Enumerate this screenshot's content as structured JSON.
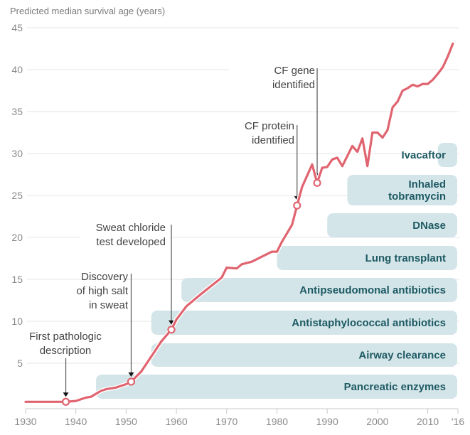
{
  "chart_data": {
    "type": "line",
    "title": "",
    "ylabel": "Predicted median survival age (years)",
    "xlabel": "",
    "xlim": [
      1930,
      2016
    ],
    "ylim": [
      0,
      45
    ],
    "grid": true,
    "y_ticks": [
      {
        "value": 45,
        "label": "45"
      },
      {
        "value": 40,
        "label": "40"
      },
      {
        "value": 35,
        "label": "35"
      },
      {
        "value": 30,
        "label": "30"
      },
      {
        "value": 25,
        "label": "25"
      },
      {
        "value": 20,
        "label": "20"
      },
      {
        "value": 15,
        "label": "15"
      },
      {
        "value": 10,
        "label": "10"
      },
      {
        "value": 5,
        "label": "5"
      }
    ],
    "x_ticks": [
      {
        "value": 1930,
        "label": "1930"
      },
      {
        "value": 1940,
        "label": "1940"
      },
      {
        "value": 1950,
        "label": "1950"
      },
      {
        "value": 1960,
        "label": "1960"
      },
      {
        "value": 1970,
        "label": "1970"
      },
      {
        "value": 1980,
        "label": "1980"
      },
      {
        "value": 1990,
        "label": "1990"
      },
      {
        "value": 2000,
        "label": "2000"
      },
      {
        "value": 2010,
        "label": "2010"
      },
      {
        "value": 2016,
        "label": "'16"
      }
    ],
    "series": [
      {
        "name": "Predicted median survival age",
        "color": "#e0646f",
        "x": [
          1930,
          1938,
          1940,
          1942,
          1943,
          1945,
          1946,
          1948,
          1950,
          1951,
          1953,
          1955,
          1957,
          1959,
          1960,
          1962,
          1965,
          1969,
          1970,
          1972,
          1973,
          1975,
          1977,
          1979,
          1980,
          1981,
          1983,
          1984,
          1985,
          1987,
          1988,
          1989,
          1990,
          1991,
          1992,
          1993,
          1995,
          1996,
          1997,
          1998,
          1999,
          2000,
          2001,
          2002,
          2003,
          2004,
          2005,
          2006,
          2007,
          2008,
          2009,
          2010,
          2011,
          2012,
          2013,
          2014,
          2015
        ],
        "y": [
          0.4,
          0.4,
          0.5,
          0.9,
          1.0,
          1.7,
          1.9,
          2.1,
          2.5,
          2.8,
          4.0,
          5.8,
          7.6,
          9.0,
          10.2,
          11.8,
          13.3,
          15.2,
          16.4,
          16.3,
          16.8,
          17.1,
          17.7,
          18.3,
          18.3,
          19.5,
          21.5,
          23.8,
          26.0,
          28.7,
          26.5,
          28.3,
          28.4,
          29.3,
          29.5,
          28.5,
          30.9,
          30.2,
          31.8,
          28.5,
          32.5,
          32.5,
          31.9,
          32.8,
          35.5,
          36.2,
          37.5,
          37.8,
          38.2,
          38.0,
          38.3,
          38.3,
          38.8,
          39.5,
          40.3,
          41.6,
          43.1
        ]
      }
    ],
    "annotations": [
      {
        "text_lines": [
          "First pathologic",
          "description"
        ],
        "year": 1938,
        "value": 0.4
      },
      {
        "text_lines": [
          "Discovery",
          "of high salt",
          "in sweat"
        ],
        "year": 1951,
        "value": 2.8
      },
      {
        "text_lines": [
          "Sweat chloride",
          "test developed"
        ],
        "year": 1959,
        "value": 9.0
      },
      {
        "text_lines": [
          "CF protein",
          "identified"
        ],
        "year": 1984,
        "value": 23.8
      },
      {
        "text_lines": [
          "CF gene",
          "identified"
        ],
        "year": 1988,
        "value": 26.5
      }
    ],
    "treatments": [
      {
        "label_lines": [
          "Ivacaftor"
        ],
        "start_year": 2012
      },
      {
        "label_lines": [
          "Inhaled",
          "tobramycin"
        ],
        "start_year": 1994
      },
      {
        "label_lines": [
          "DNase"
        ],
        "start_year": 1990
      },
      {
        "label_lines": [
          "Lung transplant"
        ],
        "start_year": 1980
      },
      {
        "label_lines": [
          "Antipseudomonal antibiotics"
        ],
        "start_year": 1961
      },
      {
        "label_lines": [
          "Antistaphylococcal antibiotics"
        ],
        "start_year": 1955
      },
      {
        "label_lines": [
          "Airway clearance"
        ],
        "start_year": 1955
      },
      {
        "label_lines": [
          "Pancreatic enzymes"
        ],
        "start_year": 1944
      }
    ],
    "treatment_bar_color": "#d3e5e8",
    "treatment_label_color": "#1e5a64"
  }
}
